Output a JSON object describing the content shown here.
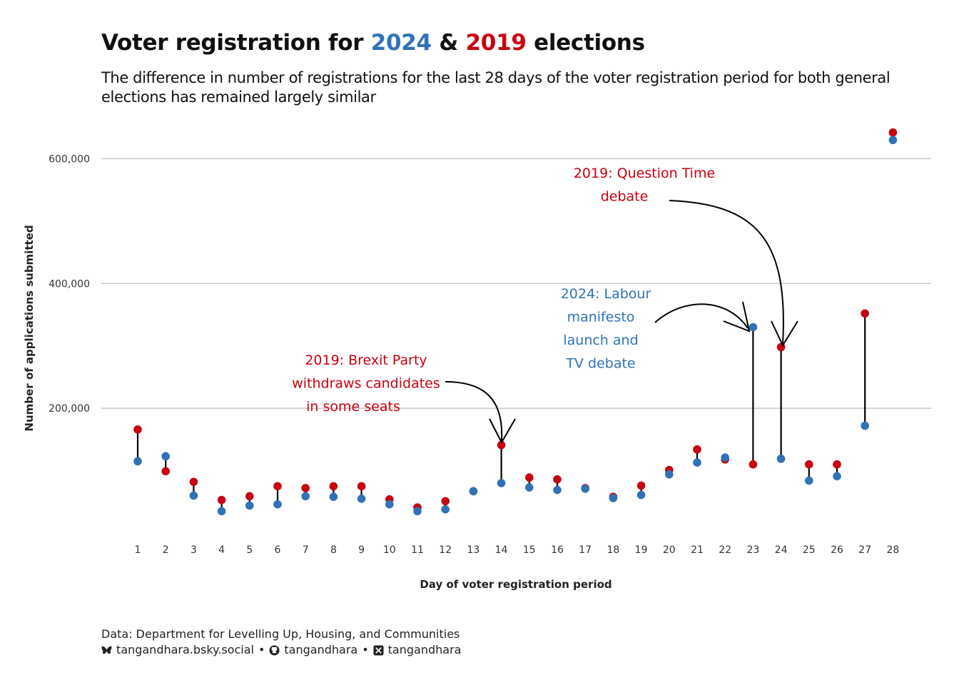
{
  "title": {
    "prefix": "Voter registration for ",
    "year_a": "2024",
    "middle": " & ",
    "year_b": "2019",
    "suffix": " elections"
  },
  "subtitle": "The difference in number of registrations for the last 28 days of the voter registration period for both general elections has remained largely similar",
  "caption": {
    "source": "Data: Department for Levelling Up, Housing, and Communities",
    "bluesky": "tangandhara.bsky.social",
    "sep1": "•",
    "github": "tangandhara",
    "sep2": "•",
    "x": "tangandhara"
  },
  "colors": {
    "series_2024": "#3072b8",
    "series_2019": "#c8000f",
    "segment": "#000000",
    "grid": "#cccccc"
  },
  "chart_data": {
    "type": "scatter",
    "subtype": "dumbbell",
    "xlabel": "Day of voter registration period",
    "ylabel": "Number of applications submitted",
    "x": [
      1,
      2,
      3,
      4,
      5,
      6,
      7,
      8,
      9,
      10,
      11,
      12,
      13,
      14,
      15,
      16,
      17,
      18,
      19,
      20,
      21,
      22,
      23,
      24,
      25,
      26,
      27,
      28
    ],
    "ylim": [
      0,
      660000
    ],
    "yticks": [
      200000,
      400000,
      600000
    ],
    "ytick_labels": [
      "200,000",
      "400,000",
      "600,000"
    ],
    "grid": "horizontal",
    "legend": "none",
    "series": [
      {
        "name": "2024",
        "values": [
          115000,
          123000,
          60000,
          35000,
          44000,
          46000,
          59000,
          58000,
          55000,
          46000,
          35000,
          38000,
          67000,
          80000,
          73000,
          69000,
          71000,
          56000,
          61000,
          94000,
          113000,
          121000,
          330000,
          119000,
          84000,
          91000,
          172000,
          630000
        ]
      },
      {
        "name": "2019",
        "values": [
          166000,
          99000,
          82000,
          53000,
          59000,
          75000,
          72000,
          75000,
          75000,
          54000,
          41000,
          51000,
          67000,
          141000,
          89000,
          86000,
          72000,
          58000,
          76000,
          101000,
          134000,
          118000,
          110000,
          298000,
          110000,
          110000,
          352000,
          642000
        ]
      }
    ],
    "annotations": [
      {
        "lines": [
          "2019: Brexit Party",
          "withdraws candidates",
          "in some seats"
        ],
        "series": "2019",
        "day": 14
      },
      {
        "lines": [
          "2024: Labour",
          "manifesto",
          "launch and",
          "TV debate"
        ],
        "series": "2024",
        "day": 23
      },
      {
        "lines": [
          "2019: Question Time",
          "debate"
        ],
        "series": "2019",
        "day": 24
      }
    ]
  }
}
